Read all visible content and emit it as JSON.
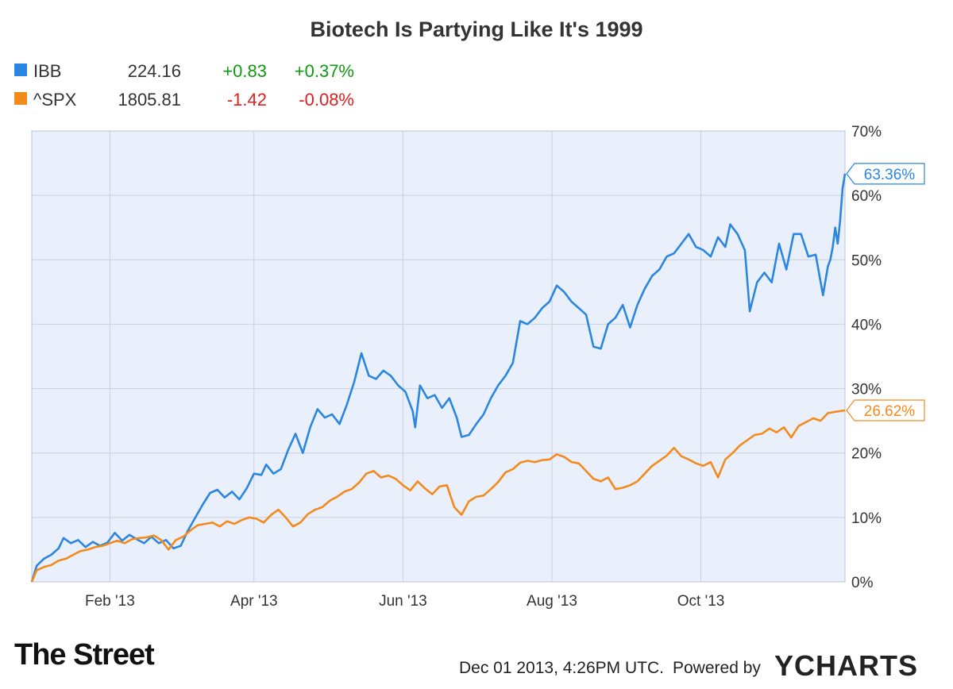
{
  "chart_data": {
    "type": "line",
    "title": "Biotech Is Partying Like It's 1999",
    "legend": [
      {
        "symbol": "IBB",
        "price": "224.16",
        "change": "+0.83",
        "change_pct": "+0.37%",
        "color": "#2a86e0",
        "change_color": "#119911"
      },
      {
        "symbol": "^SPX",
        "price": "1805.81",
        "change": "-1.42",
        "change_pct": "-0.08%",
        "color": "#f28a1c",
        "change_color": "#e02020"
      }
    ],
    "x_ticks": [
      "Feb '13",
      "Apr '13",
      "Jun '13",
      "Aug '13",
      "Oct '13"
    ],
    "y_ticks": [
      "0%",
      "10%",
      "20%",
      "30%",
      "40%",
      "50%",
      "60%",
      "70%"
    ],
    "ylim": [
      0,
      70
    ],
    "xlim": [
      "2012-12-31",
      "2013-11-29"
    ],
    "grid": true,
    "series": [
      {
        "name": "IBB",
        "color": "#2a86e0",
        "end_label": "63.36%",
        "points": [
          [
            "2012-12-31",
            0
          ],
          [
            "2013-01-02",
            2.5
          ],
          [
            "2013-01-05",
            3.6
          ],
          [
            "2013-01-08",
            4.2
          ],
          [
            "2013-01-11",
            5.2
          ],
          [
            "2013-01-13",
            6.8
          ],
          [
            "2013-01-16",
            6.0
          ],
          [
            "2013-01-19",
            6.5
          ],
          [
            "2013-01-22",
            5.4
          ],
          [
            "2013-01-25",
            6.2
          ],
          [
            "2013-01-28",
            5.6
          ],
          [
            "2013-01-31",
            6.1
          ],
          [
            "2013-02-03",
            7.6
          ],
          [
            "2013-02-06",
            6.4
          ],
          [
            "2013-02-09",
            7.3
          ],
          [
            "2013-02-12",
            6.6
          ],
          [
            "2013-02-15",
            6.0
          ],
          [
            "2013-02-18",
            7.0
          ],
          [
            "2013-02-21",
            6.0
          ],
          [
            "2013-02-24",
            6.5
          ],
          [
            "2013-02-27",
            5.2
          ],
          [
            "2013-03-02",
            5.6
          ],
          [
            "2013-03-05",
            8.0
          ],
          [
            "2013-03-08",
            10.0
          ],
          [
            "2013-03-11",
            12.0
          ],
          [
            "2013-03-14",
            13.8
          ],
          [
            "2013-03-17",
            14.3
          ],
          [
            "2013-03-20",
            13.1
          ],
          [
            "2013-03-23",
            14.0
          ],
          [
            "2013-03-26",
            12.8
          ],
          [
            "2013-03-29",
            14.5
          ],
          [
            "2013-04-01",
            16.8
          ],
          [
            "2013-04-04",
            16.6
          ],
          [
            "2013-04-06",
            18.2
          ],
          [
            "2013-04-09",
            16.8
          ],
          [
            "2013-04-12",
            17.5
          ],
          [
            "2013-04-15",
            20.5
          ],
          [
            "2013-04-18",
            23.0
          ],
          [
            "2013-04-21",
            20.0
          ],
          [
            "2013-04-24",
            24.0
          ],
          [
            "2013-04-27",
            26.8
          ],
          [
            "2013-04-30",
            25.5
          ],
          [
            "2013-05-03",
            26.0
          ],
          [
            "2013-05-06",
            24.5
          ],
          [
            "2013-05-09",
            27.5
          ],
          [
            "2013-05-12",
            31.0
          ],
          [
            "2013-05-15",
            35.5
          ],
          [
            "2013-05-18",
            32.0
          ],
          [
            "2013-05-21",
            31.5
          ],
          [
            "2013-05-24",
            32.8
          ],
          [
            "2013-05-27",
            32.0
          ],
          [
            "2013-05-30",
            30.5
          ],
          [
            "2013-06-02",
            29.5
          ],
          [
            "2013-06-05",
            26.5
          ],
          [
            "2013-06-06",
            24.0
          ],
          [
            "2013-06-08",
            30.5
          ],
          [
            "2013-06-11",
            28.5
          ],
          [
            "2013-06-14",
            29.0
          ],
          [
            "2013-06-17",
            27.0
          ],
          [
            "2013-06-20",
            28.5
          ],
          [
            "2013-06-23",
            25.5
          ],
          [
            "2013-06-25",
            22.5
          ],
          [
            "2013-06-28",
            22.8
          ],
          [
            "2013-07-01",
            24.5
          ],
          [
            "2013-07-04",
            26.0
          ],
          [
            "2013-07-07",
            28.5
          ],
          [
            "2013-07-10",
            30.5
          ],
          [
            "2013-07-13",
            32.0
          ],
          [
            "2013-07-16",
            34.0
          ],
          [
            "2013-07-19",
            40.5
          ],
          [
            "2013-07-22",
            40.0
          ],
          [
            "2013-07-25",
            41.0
          ],
          [
            "2013-07-28",
            42.5
          ],
          [
            "2013-07-31",
            43.5
          ],
          [
            "2013-08-03",
            46.0
          ],
          [
            "2013-08-06",
            45.0
          ],
          [
            "2013-08-09",
            43.5
          ],
          [
            "2013-08-12",
            42.5
          ],
          [
            "2013-08-15",
            41.5
          ],
          [
            "2013-08-18",
            36.5
          ],
          [
            "2013-08-21",
            36.2
          ],
          [
            "2013-08-24",
            40.0
          ],
          [
            "2013-08-27",
            41.0
          ],
          [
            "2013-08-30",
            43.0
          ],
          [
            "2013-09-02",
            39.5
          ],
          [
            "2013-09-05",
            43.0
          ],
          [
            "2013-09-08",
            45.5
          ],
          [
            "2013-09-11",
            47.5
          ],
          [
            "2013-09-14",
            48.5
          ],
          [
            "2013-09-17",
            50.5
          ],
          [
            "2013-09-20",
            51.0
          ],
          [
            "2013-09-23",
            52.5
          ],
          [
            "2013-09-26",
            54.0
          ],
          [
            "2013-09-29",
            52.0
          ],
          [
            "2013-10-02",
            51.5
          ],
          [
            "2013-10-05",
            50.5
          ],
          [
            "2013-10-08",
            53.5
          ],
          [
            "2013-10-11",
            52.0
          ],
          [
            "2013-10-13",
            55.5
          ],
          [
            "2013-10-16",
            54.0
          ],
          [
            "2013-10-19",
            51.5
          ],
          [
            "2013-10-21",
            42.0
          ],
          [
            "2013-10-24",
            46.5
          ],
          [
            "2013-10-27",
            48.0
          ],
          [
            "2013-10-30",
            46.5
          ],
          [
            "2013-11-02",
            52.5
          ],
          [
            "2013-11-05",
            48.5
          ],
          [
            "2013-11-08",
            54.0
          ],
          [
            "2013-11-11",
            54.0
          ],
          [
            "2013-11-14",
            50.5
          ],
          [
            "2013-11-17",
            50.8
          ],
          [
            "2013-11-20",
            44.5
          ],
          [
            "2013-11-22",
            49.0
          ],
          [
            "2013-11-23",
            50.0
          ],
          [
            "2013-11-24",
            52.0
          ],
          [
            "2013-11-25",
            55.0
          ],
          [
            "2013-11-26",
            52.5
          ],
          [
            "2013-11-27",
            56.0
          ],
          [
            "2013-11-28",
            61.0
          ],
          [
            "2013-11-29",
            63.36
          ]
        ]
      },
      {
        "name": "^SPX",
        "color": "#f28a1c",
        "end_label": "26.62%",
        "points": [
          [
            "2012-12-31",
            0
          ],
          [
            "2013-01-02",
            1.8
          ],
          [
            "2013-01-05",
            2.3
          ],
          [
            "2013-01-08",
            2.6
          ],
          [
            "2013-01-11",
            3.3
          ],
          [
            "2013-01-14",
            3.6
          ],
          [
            "2013-01-17",
            4.2
          ],
          [
            "2013-01-20",
            4.8
          ],
          [
            "2013-01-23",
            5.0
          ],
          [
            "2013-01-26",
            5.4
          ],
          [
            "2013-01-29",
            5.6
          ],
          [
            "2013-02-01",
            6.0
          ],
          [
            "2013-02-04",
            6.4
          ],
          [
            "2013-02-07",
            6.0
          ],
          [
            "2013-02-10",
            6.6
          ],
          [
            "2013-02-13",
            6.8
          ],
          [
            "2013-02-16",
            6.9
          ],
          [
            "2013-02-19",
            7.2
          ],
          [
            "2013-02-22",
            6.5
          ],
          [
            "2013-02-25",
            5.0
          ],
          [
            "2013-02-28",
            6.5
          ],
          [
            "2013-03-03",
            7.0
          ],
          [
            "2013-03-06",
            8.0
          ],
          [
            "2013-03-09",
            8.8
          ],
          [
            "2013-03-12",
            9.0
          ],
          [
            "2013-03-15",
            9.2
          ],
          [
            "2013-03-18",
            8.6
          ],
          [
            "2013-03-21",
            9.4
          ],
          [
            "2013-03-24",
            9.0
          ],
          [
            "2013-03-27",
            9.6
          ],
          [
            "2013-03-30",
            10.0
          ],
          [
            "2013-04-02",
            9.8
          ],
          [
            "2013-04-05",
            9.2
          ],
          [
            "2013-04-08",
            10.4
          ],
          [
            "2013-04-11",
            11.2
          ],
          [
            "2013-04-14",
            10.0
          ],
          [
            "2013-04-17",
            8.6
          ],
          [
            "2013-04-20",
            9.2
          ],
          [
            "2013-04-23",
            10.5
          ],
          [
            "2013-04-26",
            11.2
          ],
          [
            "2013-04-29",
            11.6
          ],
          [
            "2013-05-02",
            12.6
          ],
          [
            "2013-05-05",
            13.2
          ],
          [
            "2013-05-08",
            14.0
          ],
          [
            "2013-05-11",
            14.4
          ],
          [
            "2013-05-14",
            15.4
          ],
          [
            "2013-05-17",
            16.8
          ],
          [
            "2013-05-20",
            17.2
          ],
          [
            "2013-05-23",
            16.2
          ],
          [
            "2013-05-26",
            16.5
          ],
          [
            "2013-05-29",
            16.0
          ],
          [
            "2013-06-01",
            15.0
          ],
          [
            "2013-06-04",
            14.2
          ],
          [
            "2013-06-07",
            15.6
          ],
          [
            "2013-06-10",
            14.5
          ],
          [
            "2013-06-13",
            13.6
          ],
          [
            "2013-06-16",
            14.8
          ],
          [
            "2013-06-19",
            15.0
          ],
          [
            "2013-06-22",
            11.6
          ],
          [
            "2013-06-25",
            10.4
          ],
          [
            "2013-06-28",
            12.5
          ],
          [
            "2013-07-01",
            13.2
          ],
          [
            "2013-07-04",
            13.4
          ],
          [
            "2013-07-07",
            14.4
          ],
          [
            "2013-07-10",
            15.5
          ],
          [
            "2013-07-13",
            17.0
          ],
          [
            "2013-07-16",
            17.5
          ],
          [
            "2013-07-19",
            18.5
          ],
          [
            "2013-07-22",
            18.8
          ],
          [
            "2013-07-25",
            18.6
          ],
          [
            "2013-07-28",
            18.9
          ],
          [
            "2013-07-31",
            19.0
          ],
          [
            "2013-08-03",
            19.8
          ],
          [
            "2013-08-06",
            19.4
          ],
          [
            "2013-08-09",
            18.6
          ],
          [
            "2013-08-12",
            18.4
          ],
          [
            "2013-08-15",
            17.2
          ],
          [
            "2013-08-18",
            16.0
          ],
          [
            "2013-08-21",
            15.6
          ],
          [
            "2013-08-24",
            16.2
          ],
          [
            "2013-08-27",
            14.4
          ],
          [
            "2013-08-30",
            14.6
          ],
          [
            "2013-09-02",
            15.0
          ],
          [
            "2013-09-05",
            15.6
          ],
          [
            "2013-09-08",
            16.8
          ],
          [
            "2013-09-11",
            18.0
          ],
          [
            "2013-09-14",
            18.8
          ],
          [
            "2013-09-17",
            19.6
          ],
          [
            "2013-09-20",
            20.8
          ],
          [
            "2013-09-23",
            19.5
          ],
          [
            "2013-09-26",
            19.0
          ],
          [
            "2013-09-29",
            18.4
          ],
          [
            "2013-10-02",
            18.0
          ],
          [
            "2013-10-05",
            18.6
          ],
          [
            "2013-10-08",
            16.2
          ],
          [
            "2013-10-11",
            19.0
          ],
          [
            "2013-10-14",
            20.0
          ],
          [
            "2013-10-17",
            21.2
          ],
          [
            "2013-10-20",
            22.0
          ],
          [
            "2013-10-23",
            22.8
          ],
          [
            "2013-10-26",
            23.0
          ],
          [
            "2013-10-29",
            23.8
          ],
          [
            "2013-11-01",
            23.2
          ],
          [
            "2013-11-04",
            24.0
          ],
          [
            "2013-11-07",
            22.4
          ],
          [
            "2013-11-10",
            24.2
          ],
          [
            "2013-11-13",
            24.8
          ],
          [
            "2013-11-16",
            25.4
          ],
          [
            "2013-11-19",
            25.0
          ],
          [
            "2013-11-22",
            26.2
          ],
          [
            "2013-11-25",
            26.4
          ],
          [
            "2013-11-29",
            26.62
          ]
        ]
      }
    ]
  },
  "footer": {
    "brand_left": "The Street",
    "timestamp": "Dec 01 2013, 4:26PM UTC.",
    "powered_by": "Powered by",
    "brand_right": "YCHARTS"
  }
}
